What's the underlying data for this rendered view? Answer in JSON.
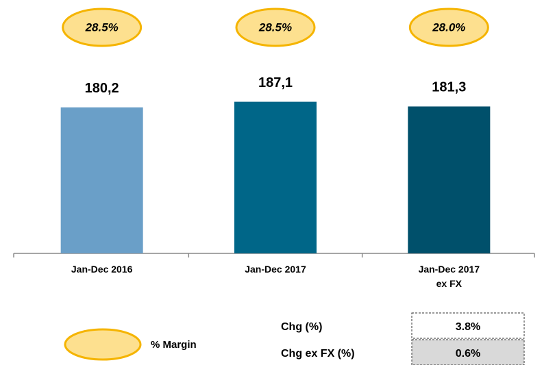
{
  "chart_data": {
    "type": "bar",
    "categories": [
      "Jan-Dec 2016",
      "Jan-Dec 2017",
      "Jan-Dec 2017\nex FX"
    ],
    "values": [
      180.2,
      187.1,
      181.3
    ],
    "value_labels": [
      "180,2",
      "187,1",
      "181,3"
    ],
    "colors": [
      "#6a9fc8",
      "#006688",
      "#00506b"
    ],
    "ylim": [
      0,
      300
    ],
    "margins": [
      28.5,
      28.5,
      28.0
    ],
    "margin_labels": [
      "28.5%",
      "28.5%",
      "28.0%"
    ],
    "margin_color": "#fde08f",
    "margin_edge": "#f5b400",
    "legend": "% Margin",
    "change_table": [
      [
        "Chg (%)",
        "3.8%"
      ],
      [
        "Chg ex FX (%)",
        "0.6%"
      ]
    ]
  }
}
